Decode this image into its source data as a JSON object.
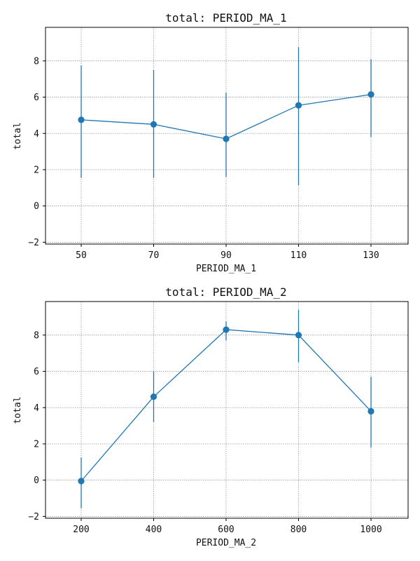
{
  "chart_data": [
    {
      "type": "line",
      "title": "total: PERIOD_MA_1",
      "xlabel": "PERIOD_MA_1",
      "ylabel": "total",
      "x": [
        50,
        70,
        90,
        110,
        130
      ],
      "x_tick_labels": [
        "50",
        "70",
        "90",
        "110",
        "130"
      ],
      "y": [
        4.75,
        4.5,
        3.7,
        5.55,
        6.15
      ],
      "y_err_low": [
        1.55,
        1.55,
        1.6,
        1.15,
        3.8
      ],
      "y_err_high": [
        7.75,
        7.5,
        6.25,
        8.75,
        8.1
      ],
      "y_ticks": [
        -2,
        0,
        2,
        4,
        6,
        8
      ],
      "y_tick_labels": [
        "−2",
        "0",
        "2",
        "4",
        "6",
        "8"
      ],
      "ylim": [
        -2.1,
        9.85
      ],
      "grid": true,
      "color": "#1f77b4"
    },
    {
      "type": "line",
      "title": "total: PERIOD_MA_2",
      "xlabel": "PERIOD_MA_2",
      "ylabel": "total",
      "x": [
        200,
        400,
        600,
        800,
        1000
      ],
      "x_tick_labels": [
        "200",
        "400",
        "600",
        "800",
        "1000"
      ],
      "y": [
        -0.05,
        4.6,
        8.3,
        8.0,
        3.8
      ],
      "y_err_low": [
        -1.55,
        3.2,
        7.7,
        6.5,
        1.8
      ],
      "y_err_high": [
        1.25,
        6.0,
        8.75,
        9.4,
        5.7
      ],
      "y_ticks": [
        -2,
        0,
        2,
        4,
        6,
        8
      ],
      "y_tick_labels": [
        "−2",
        "0",
        "2",
        "4",
        "6",
        "8"
      ],
      "ylim": [
        -2.1,
        9.85
      ],
      "grid": true,
      "color": "#1f77b4"
    }
  ]
}
